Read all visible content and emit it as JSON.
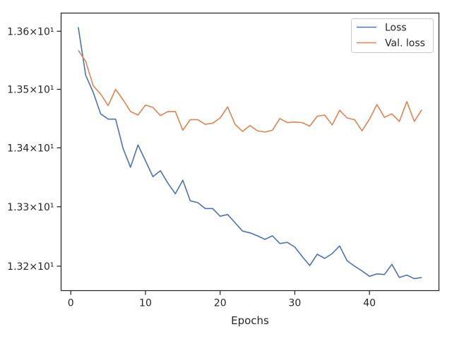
{
  "chart_data": {
    "type": "line",
    "title": "",
    "xlabel": "Epochs",
    "ylabel": "",
    "xlim": [
      -1.3,
      49.3
    ],
    "ylim": [
      13.159,
      13.6315
    ],
    "y_scale": "log",
    "grid": false,
    "legend_position": "top-right",
    "x_ticks": [
      0,
      10,
      20,
      30,
      40
    ],
    "x_tick_labels": [
      "0",
      "10",
      "20",
      "30",
      "40"
    ],
    "y_ticks": [
      13.2,
      13.3,
      13.4,
      13.5,
      13.6
    ],
    "y_tick_labels": [
      "1.32×10¹",
      "1.33×10¹",
      "1.34×10¹",
      "1.35×10¹",
      "1.36×10¹"
    ],
    "x": [
      1,
      2,
      3,
      4,
      5,
      6,
      7,
      8,
      9,
      10,
      11,
      12,
      13,
      14,
      15,
      16,
      17,
      18,
      19,
      20,
      21,
      22,
      23,
      24,
      25,
      26,
      27,
      28,
      29,
      30,
      31,
      32,
      33,
      34,
      35,
      36,
      37,
      38,
      39,
      40,
      41,
      42,
      43,
      44,
      45,
      46,
      47
    ],
    "series": [
      {
        "name": "Loss",
        "color": "#4c72b0",
        "values": [
          13.607,
          13.524,
          13.495,
          13.458,
          13.449,
          13.449,
          13.399,
          13.367,
          13.405,
          13.378,
          13.351,
          13.361,
          13.34,
          13.322,
          13.345,
          13.31,
          13.307,
          13.297,
          13.297,
          13.284,
          13.287,
          13.273,
          13.259,
          13.256,
          13.251,
          13.245,
          13.251,
          13.238,
          13.24,
          13.232,
          13.216,
          13.201,
          13.22,
          13.213,
          13.221,
          13.234,
          13.209,
          13.2,
          13.192,
          13.183,
          13.187,
          13.186,
          13.203,
          13.181,
          13.185,
          13.179,
          13.181
        ]
      },
      {
        "name": "Val. loss",
        "color": "#dd8452",
        "values": [
          13.567,
          13.548,
          13.506,
          13.492,
          13.472,
          13.5,
          13.482,
          13.462,
          13.456,
          13.473,
          13.469,
          13.455,
          13.462,
          13.462,
          13.43,
          13.448,
          13.448,
          13.44,
          13.442,
          13.451,
          13.47,
          13.44,
          13.428,
          13.438,
          13.429,
          13.427,
          13.43,
          13.45,
          13.443,
          13.444,
          13.443,
          13.437,
          13.454,
          13.456,
          13.439,
          13.464,
          13.451,
          13.448,
          13.429,
          13.449,
          13.474,
          13.452,
          13.458,
          13.445,
          13.479,
          13.445,
          13.465
        ]
      }
    ]
  }
}
